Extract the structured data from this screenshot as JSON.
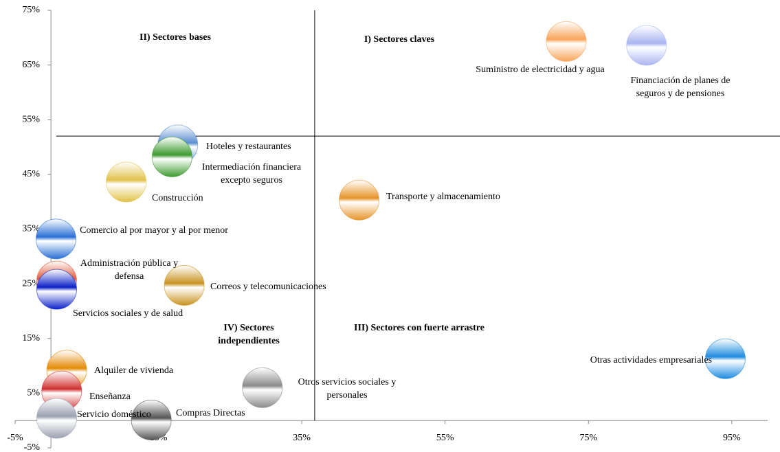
{
  "chart_data": {
    "type": "bubble",
    "xlim": [
      -5,
      100
    ],
    "ylim": [
      -5,
      75
    ],
    "xticks": [
      {
        "value": -5,
        "label": "-5%"
      },
      {
        "value": 15,
        "label": "15%"
      },
      {
        "value": 35,
        "label": "35%"
      },
      {
        "value": 55,
        "label": "55%"
      },
      {
        "value": 75,
        "label": "75%"
      },
      {
        "value": 95,
        "label": "95%"
      }
    ],
    "yticks": [
      {
        "value": -5,
        "label": "-5%"
      },
      {
        "value": 5,
        "label": "5%"
      },
      {
        "value": 15,
        "label": "15%"
      },
      {
        "value": 25,
        "label": "25%"
      },
      {
        "value": 35,
        "label": "35%"
      },
      {
        "value": 45,
        "label": "45%"
      },
      {
        "value": 55,
        "label": "55%"
      },
      {
        "value": 65,
        "label": "65%"
      },
      {
        "value": 75,
        "label": "75%"
      }
    ],
    "quadrant_lines": {
      "x": 36.8,
      "y": 52
    },
    "quadrant_labels": [
      "II) Sectores bases",
      "I) Sectores claves",
      "IV) Sectores independientes",
      "III) Sectores con fuerte arrastre"
    ],
    "series": [
      {
        "name": "Suministro de electricidad y agua",
        "color": "#f9a55a",
        "x": 71.9,
        "y": 69.3
      },
      {
        "name": "Financiación de planes de seguros y de pensiones",
        "color": "#a9b4f0",
        "x": 83.1,
        "y": 68.6
      },
      {
        "name": "Hoteles y restaurantes",
        "color": "#5b8fd0",
        "x": 17.7,
        "y": 50.4
      },
      {
        "name": "Intermediación financiera excepto seguros",
        "color": "#3d9b2f",
        "x": 16.9,
        "y": 48.2
      },
      {
        "name": "Construcción",
        "color": "#e2c24a",
        "x": 10.5,
        "y": 43.6
      },
      {
        "name": "Transporte y almacenamiento",
        "color": "#e8942a",
        "x": 43.0,
        "y": 40.3
      },
      {
        "name": "Comercio al por mayor y al por menor",
        "color": "#2a6fd6",
        "x": 0.7,
        "y": 33.2
      },
      {
        "name": "Administración pública y defensa",
        "color": "#e05a3a",
        "x": 0.8,
        "y": 25.5
      },
      {
        "name": "Servicios sociales y de salud",
        "color": "#0a22c8",
        "x": 0.8,
        "y": 24.0
      },
      {
        "name": "Correos y telecomunicaciones",
        "color": "#c99320",
        "x": 18.6,
        "y": 24.7
      },
      {
        "name": "Otras actividades empresariales",
        "color": "#1e8be0",
        "x": 94.1,
        "y": 11.3
      },
      {
        "name": "Alquiler de vivienda",
        "color": "#e48a06",
        "x": 2.2,
        "y": 9.2
      },
      {
        "name": "Otros servicios sociales y personales",
        "color": "#8a8a8a",
        "x": 29.5,
        "y": 6.0
      },
      {
        "name": "Enseñanza",
        "color": "#d03030",
        "x": 1.5,
        "y": 5.4
      },
      {
        "name": "Servicio doméstico",
        "color": "#9aa0b0",
        "x": 0.8,
        "y": 0.4
      },
      {
        "name": "Compras Directas",
        "color": "#555555",
        "x": 14.0,
        "y": 0.1
      }
    ]
  }
}
